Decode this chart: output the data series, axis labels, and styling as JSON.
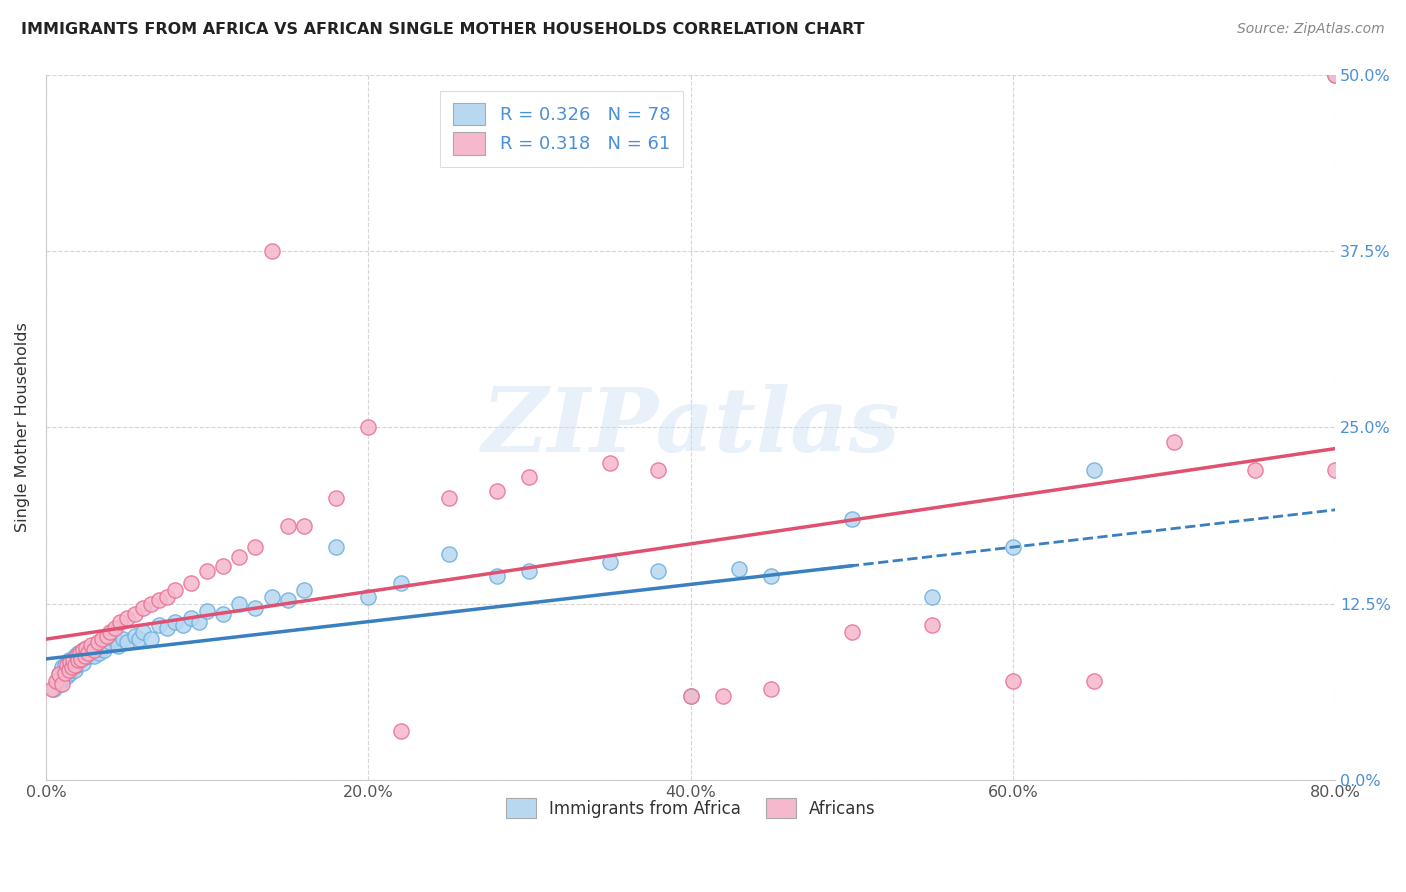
{
  "title": "IMMIGRANTS FROM AFRICA VS AFRICAN SINGLE MOTHER HOUSEHOLDS CORRELATION CHART",
  "source": "Source: ZipAtlas.com",
  "ylabel_label": "Single Mother Households",
  "legend_entries": [
    {
      "label": "R = 0.326   N = 78",
      "facecolor": "#b8d8f0"
    },
    {
      "label": "R = 0.318   N = 61",
      "facecolor": "#f5b8cc"
    }
  ],
  "legend_labels_bottom": [
    "Immigrants from Africa",
    "Africans"
  ],
  "watermark": "ZIPatlas",
  "blue_edge_color": "#6aaee0",
  "pink_edge_color": "#e87090",
  "blue_face_color": "#b8d8f0",
  "pink_face_color": "#f5b8cc",
  "blue_line_color": "#3a7fc0",
  "pink_line_color": "#e05070",
  "right_tick_color": "#4a90d9",
  "xlim": [
    0.0,
    0.8
  ],
  "ylim": [
    0.0,
    0.5
  ],
  "xtick_vals": [
    0.0,
    0.2,
    0.4,
    0.6,
    0.8
  ],
  "ytick_vals": [
    0.0,
    0.125,
    0.25,
    0.375,
    0.5
  ],
  "blue_x": [
    0.005,
    0.007,
    0.008,
    0.009,
    0.01,
    0.01,
    0.011,
    0.012,
    0.012,
    0.013,
    0.014,
    0.014,
    0.015,
    0.015,
    0.016,
    0.016,
    0.017,
    0.017,
    0.018,
    0.018,
    0.019,
    0.02,
    0.02,
    0.021,
    0.022,
    0.023,
    0.023,
    0.024,
    0.025,
    0.026,
    0.027,
    0.028,
    0.029,
    0.03,
    0.031,
    0.032,
    0.033,
    0.035,
    0.036,
    0.038,
    0.04,
    0.042,
    0.045,
    0.048,
    0.05,
    0.055,
    0.058,
    0.06,
    0.065,
    0.07,
    0.075,
    0.08,
    0.085,
    0.09,
    0.095,
    0.1,
    0.11,
    0.12,
    0.13,
    0.14,
    0.15,
    0.16,
    0.18,
    0.2,
    0.22,
    0.25,
    0.28,
    0.3,
    0.35,
    0.38,
    0.4,
    0.43,
    0.45,
    0.5,
    0.55,
    0.6,
    0.65,
    0.8
  ],
  "blue_y": [
    0.065,
    0.07,
    0.075,
    0.068,
    0.072,
    0.08,
    0.076,
    0.078,
    0.082,
    0.074,
    0.08,
    0.085,
    0.076,
    0.082,
    0.078,
    0.084,
    0.08,
    0.086,
    0.078,
    0.088,
    0.082,
    0.083,
    0.09,
    0.085,
    0.088,
    0.083,
    0.092,
    0.087,
    0.09,
    0.088,
    0.092,
    0.09,
    0.094,
    0.088,
    0.092,
    0.096,
    0.09,
    0.094,
    0.092,
    0.096,
    0.098,
    0.1,
    0.095,
    0.1,
    0.098,
    0.102,
    0.1,
    0.105,
    0.1,
    0.11,
    0.108,
    0.112,
    0.11,
    0.115,
    0.112,
    0.12,
    0.118,
    0.125,
    0.122,
    0.13,
    0.128,
    0.135,
    0.165,
    0.13,
    0.14,
    0.16,
    0.145,
    0.148,
    0.155,
    0.148,
    0.06,
    0.15,
    0.145,
    0.185,
    0.13,
    0.165,
    0.22,
    0.5
  ],
  "pink_x": [
    0.004,
    0.006,
    0.008,
    0.01,
    0.012,
    0.013,
    0.014,
    0.015,
    0.016,
    0.017,
    0.018,
    0.019,
    0.02,
    0.021,
    0.022,
    0.023,
    0.024,
    0.025,
    0.026,
    0.028,
    0.03,
    0.032,
    0.035,
    0.038,
    0.04,
    0.043,
    0.046,
    0.05,
    0.055,
    0.06,
    0.065,
    0.07,
    0.075,
    0.08,
    0.09,
    0.1,
    0.11,
    0.12,
    0.13,
    0.14,
    0.15,
    0.16,
    0.18,
    0.2,
    0.22,
    0.25,
    0.28,
    0.3,
    0.35,
    0.38,
    0.4,
    0.42,
    0.45,
    0.5,
    0.55,
    0.6,
    0.65,
    0.7,
    0.75,
    0.8,
    0.8
  ],
  "pink_y": [
    0.065,
    0.07,
    0.075,
    0.068,
    0.076,
    0.082,
    0.078,
    0.084,
    0.08,
    0.085,
    0.082,
    0.088,
    0.085,
    0.09,
    0.086,
    0.092,
    0.088,
    0.094,
    0.09,
    0.096,
    0.092,
    0.098,
    0.1,
    0.102,
    0.105,
    0.108,
    0.112,
    0.115,
    0.118,
    0.122,
    0.125,
    0.128,
    0.13,
    0.135,
    0.14,
    0.148,
    0.152,
    0.158,
    0.165,
    0.375,
    0.18,
    0.18,
    0.2,
    0.25,
    0.035,
    0.2,
    0.205,
    0.215,
    0.225,
    0.22,
    0.06,
    0.06,
    0.065,
    0.105,
    0.11,
    0.07,
    0.07,
    0.24,
    0.22,
    0.22,
    0.5
  ]
}
